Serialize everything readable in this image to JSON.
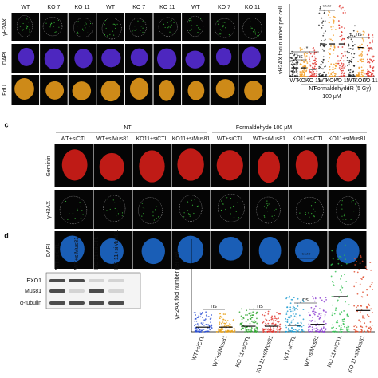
{
  "panel_a": {
    "column_labels": [
      "WT",
      "KO 7",
      "KO 11",
      "WT",
      "KO 7",
      "KO 11",
      "WT",
      "KO 7",
      "KO 11"
    ],
    "row_labels": [
      "γH2AX",
      "DAPI",
      "EdU"
    ]
  },
  "panel_b": {
    "y_label": "γH2AX foci number per cell",
    "x_labels": [
      "WT",
      "KO 7",
      "KO 11",
      "WT",
      "KO 7",
      "KO 11",
      "WT",
      "KO 7",
      "KO 11"
    ],
    "groups": [
      {
        "label": "NT"
      },
      {
        "label": "Formaldehyde",
        "sublabel": "100 μM"
      },
      {
        "label": "IR (5 Gy)"
      }
    ],
    "significance": [
      "ns",
      "*",
      "****",
      "ns"
    ]
  },
  "panel_c": {
    "label": "c",
    "conditions": [
      "NT",
      "Formaldehyde 100 μM"
    ],
    "column_labels": [
      "WT+siCTL",
      "WT+siMus81",
      "KO11+siCTL",
      "KO11+siMus81",
      "WT+siCTL",
      "WT+siMus81",
      "KO11+siCTL",
      "KO11+siMus81"
    ],
    "row_labels": [
      "Geminin",
      "γH2AX",
      "DAPI"
    ]
  },
  "panel_d": {
    "label": "d",
    "blot": {
      "lanes": [
        "WT+siCTL",
        "WT+siMus81",
        "KO 11+siCTL",
        "KO 11+siMus81"
      ],
      "rows": [
        "EXO1",
        "Mus81",
        "α-tubulin"
      ]
    },
    "plot": {
      "y_label": "γH2AX foci number per cell",
      "x_labels": [
        "WT+siCTL",
        "WT+siMus81",
        "KO 11+siCTL",
        "KO 11+siMus81",
        "WT+siCTL",
        "WT+siMus81",
        "KO 11+siCTL",
        "KO 11+siMus81"
      ],
      "significance": [
        "ns",
        "ns",
        "ns",
        "****"
      ]
    }
  }
}
